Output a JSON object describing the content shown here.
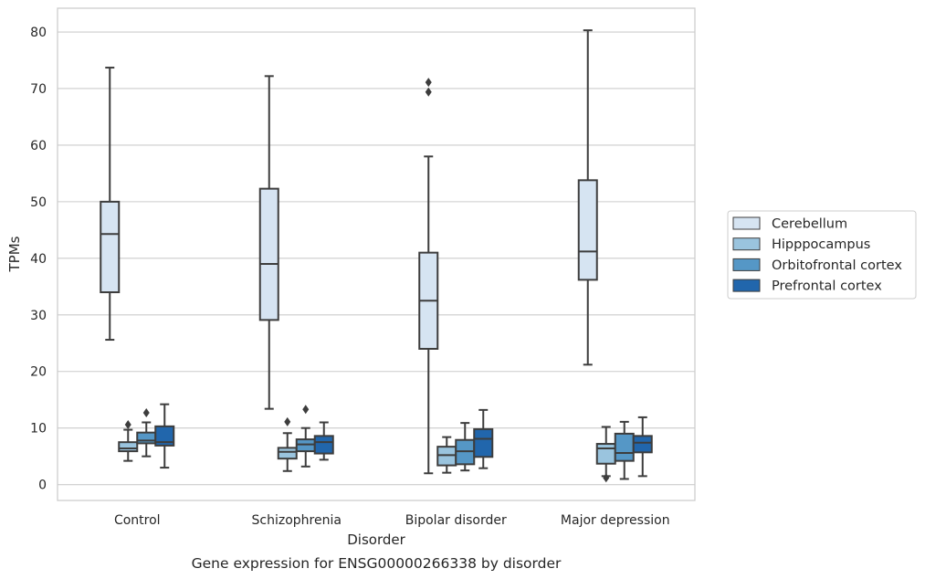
{
  "caption": "Gene expression for ENSG00000266338 by disorder",
  "chart_data": {
    "type": "box",
    "xlabel": "Disorder",
    "ylabel": "TPMs",
    "ylim": [
      -2.8,
      84.2
    ],
    "yticks": [
      0,
      10,
      20,
      30,
      40,
      50,
      60,
      70,
      80
    ],
    "grid": true,
    "legend_position": "right",
    "categories": [
      "Control",
      "Schizophrenia",
      "Bipolar disorder",
      "Major depression"
    ],
    "series": [
      {
        "name": "Cerebellum",
        "color": "#d6e4f2",
        "boxes": [
          {
            "whislo": 25.6,
            "q1": 34.0,
            "med": 44.3,
            "q3": 50.0,
            "whishi": 73.7,
            "fliers": []
          },
          {
            "whislo": 13.4,
            "q1": 29.1,
            "med": 39.0,
            "q3": 52.3,
            "whishi": 72.2,
            "fliers": []
          },
          {
            "whislo": 2.0,
            "q1": 24.0,
            "med": 32.5,
            "q3": 41.0,
            "whishi": 58.0,
            "fliers": [
              69.4,
              71.1
            ]
          },
          {
            "whislo": 21.2,
            "q1": 36.2,
            "med": 41.2,
            "q3": 53.8,
            "whishi": 80.3,
            "fliers": []
          }
        ]
      },
      {
        "name": "Hipppocampus",
        "color": "#9ac4de",
        "boxes": [
          {
            "whislo": 4.2,
            "q1": 5.9,
            "med": 6.4,
            "q3": 7.5,
            "whishi": 9.7,
            "fliers": [
              10.6
            ]
          },
          {
            "whislo": 2.4,
            "q1": 4.6,
            "med": 5.8,
            "q3": 6.5,
            "whishi": 9.1,
            "fliers": [
              11.1
            ]
          },
          {
            "whislo": 2.1,
            "q1": 3.4,
            "med": 5.2,
            "q3": 6.7,
            "whishi": 8.4,
            "fliers": []
          },
          {
            "whislo": 1.5,
            "q1": 3.7,
            "med": 6.4,
            "q3": 7.2,
            "whishi": 10.2,
            "fliers": [
              1.2
            ]
          }
        ]
      },
      {
        "name": "Orbitofrontal cortex",
        "color": "#5597c6",
        "boxes": [
          {
            "whislo": 5.0,
            "q1": 7.3,
            "med": 7.8,
            "q3": 9.2,
            "whishi": 11.0,
            "fliers": [
              12.7
            ]
          },
          {
            "whislo": 3.2,
            "q1": 5.9,
            "med": 7.1,
            "q3": 8.0,
            "whishi": 10.0,
            "fliers": [
              13.3
            ]
          },
          {
            "whislo": 2.5,
            "q1": 3.6,
            "med": 5.9,
            "q3": 7.9,
            "whishi": 10.9,
            "fliers": []
          },
          {
            "whislo": 1.0,
            "q1": 4.2,
            "med": 5.6,
            "q3": 9.0,
            "whishi": 11.1,
            "fliers": []
          }
        ]
      },
      {
        "name": "Prefrontal cortex",
        "color": "#2166ac",
        "boxes": [
          {
            "whislo": 3.0,
            "q1": 6.9,
            "med": 7.5,
            "q3": 10.3,
            "whishi": 14.2,
            "fliers": []
          },
          {
            "whislo": 4.4,
            "q1": 5.5,
            "med": 7.5,
            "q3": 8.6,
            "whishi": 11.0,
            "fliers": []
          },
          {
            "whislo": 2.9,
            "q1": 4.9,
            "med": 8.1,
            "q3": 9.8,
            "whishi": 13.2,
            "fliers": []
          },
          {
            "whislo": 1.5,
            "q1": 5.7,
            "med": 7.4,
            "q3": 8.6,
            "whishi": 11.9,
            "fliers": []
          }
        ]
      }
    ]
  }
}
